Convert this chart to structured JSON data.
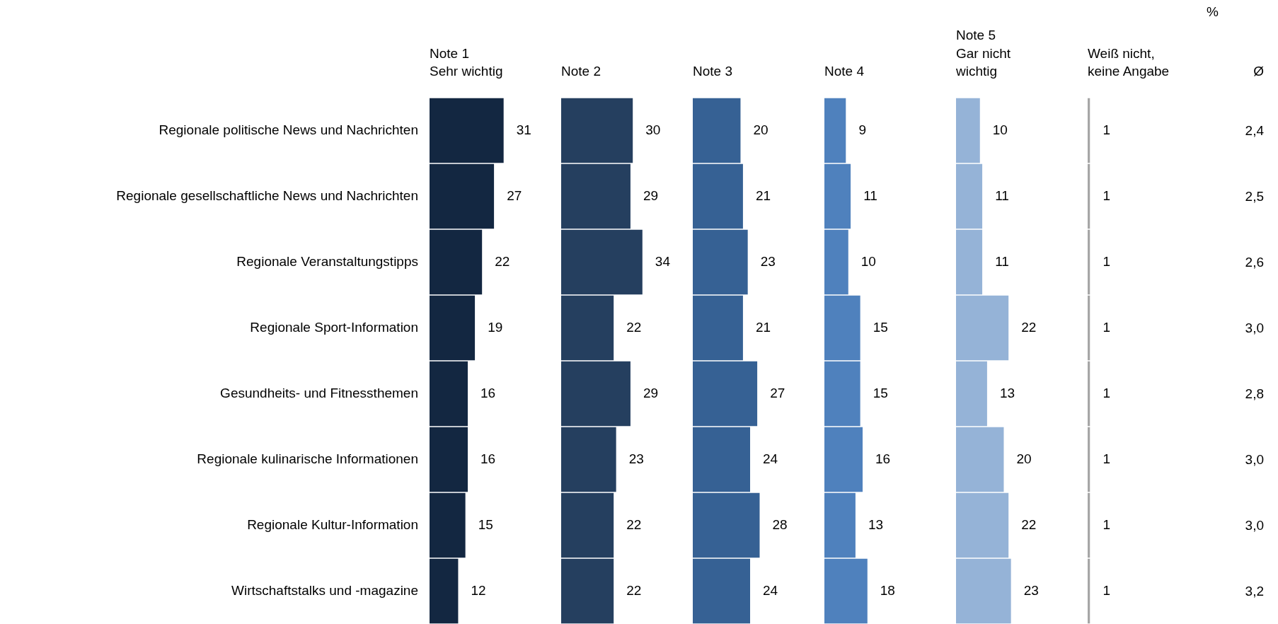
{
  "chart_data": [
    {
      "type": "bar",
      "orientation": "horizontal",
      "data_labels": true,
      "tick_labels": "y",
      "title": "Note 1\nSehr wichtig",
      "color": "#132741",
      "categories": [
        "Regionale politische News und Nachrichten",
        "Regionale gesellschaftliche News und Nachrichten",
        "Regionale Veranstaltungstipps",
        "Regionale Sport-Information",
        "Gesundheits- und Fitnessthemen",
        "Regionale kulinarische Informationen",
        "Regionale Kultur-Information",
        "Wirtschaftstalks und -magazine"
      ],
      "values": [
        31,
        27,
        22,
        19,
        16,
        16,
        15,
        12
      ]
    },
    {
      "type": "bar",
      "orientation": "horizontal",
      "data_labels": true,
      "tick_labels": false,
      "title": "Note 2",
      "color": "#253f5f",
      "categories": [
        null,
        null,
        null,
        null,
        null,
        null,
        null,
        null
      ],
      "values": [
        30,
        29,
        34,
        22,
        29,
        23,
        22,
        22
      ]
    },
    {
      "type": "bar",
      "orientation": "horizontal",
      "data_labels": true,
      "tick_labels": false,
      "title": "Note 3",
      "color": "#366194",
      "categories": [
        null,
        null,
        null,
        null,
        null,
        null,
        null,
        null
      ],
      "values": [
        20,
        21,
        23,
        21,
        27,
        24,
        28,
        24
      ]
    },
    {
      "type": "bar",
      "orientation": "horizontal",
      "data_labels": true,
      "tick_labels": false,
      "title": "Note 4",
      "color": "#4f81bd",
      "categories": [
        null,
        null,
        null,
        null,
        null,
        null,
        null,
        null
      ],
      "values": [
        9,
        11,
        10,
        15,
        15,
        16,
        13,
        18
      ]
    },
    {
      "type": "bar",
      "orientation": "horizontal",
      "data_labels": true,
      "tick_labels": false,
      "title": "Note 5\nGar nicht\nwichtig",
      "color": "#95b3d7",
      "categories": [
        null,
        null,
        null,
        null,
        null,
        null,
        null,
        null
      ],
      "values": [
        10,
        11,
        11,
        22,
        13,
        20,
        22,
        23
      ]
    },
    {
      "type": "bar",
      "orientation": "horizontal",
      "data_labels": true,
      "tick_labels": false,
      "title": "Weiß nicht,\nkeine Angabe",
      "color": "#a6a6a6",
      "categories": [
        null,
        null,
        null,
        null,
        null,
        null,
        null,
        null
      ],
      "values": [
        1,
        1,
        1,
        1,
        1,
        1,
        1,
        1
      ]
    },
    {
      "type": "other",
      "title": "Ø",
      "values": [
        2.4,
        2.5,
        2.6,
        3.0,
        2.8,
        3.0,
        3.0,
        3.2
      ],
      "value_labels": [
        "2,4",
        "2,5",
        "2,6",
        "3,0",
        "2,8",
        "3,0",
        "3,0",
        "3,2"
      ],
      "annotations": [
        "%"
      ]
    }
  ]
}
